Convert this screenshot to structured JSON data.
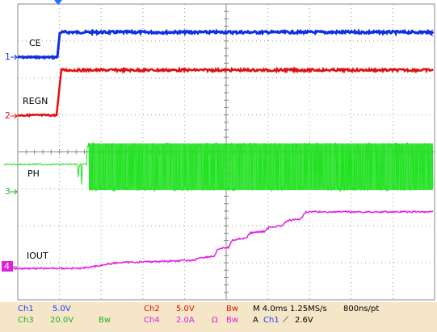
{
  "channels": [
    {
      "number": "1",
      "label": "CE"
    },
    {
      "number": "2",
      "label": "REGN"
    },
    {
      "number": "3",
      "label": "PH"
    },
    {
      "number": "4",
      "label": "IOUT"
    }
  ],
  "status_bar": {
    "row1": [
      "Ch1",
      "5.0V",
      "Ch2",
      "5.0V",
      "Bw",
      "M 4.0ms 1.25MS/s",
      "800ns/pt"
    ],
    "row2": [
      "Ch3",
      "20.0V",
      "Bw",
      "Ch4",
      "2.0A",
      "Ω",
      "Bw",
      "A",
      "Ch1",
      "⟋",
      "2.6V"
    ]
  }
}
